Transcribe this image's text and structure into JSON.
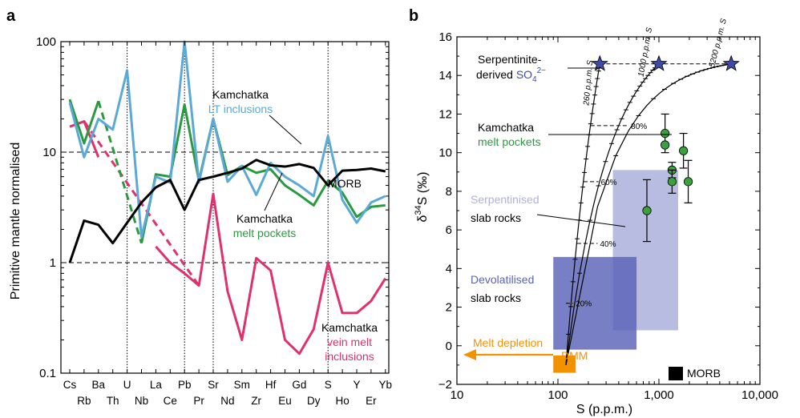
{
  "panels": {
    "a_label": "a",
    "b_label": "b"
  },
  "colors": {
    "morb": "#000000",
    "lt_inclusions": "#5aa9d6",
    "melt_pockets": "#2a9a3f",
    "vein_melt": "#e0306e",
    "serp_box": "#b4b8df",
    "devol_box": "#5a63b8",
    "star": "#3d4aa8",
    "dmm": "#f39200",
    "point_fill": "#3aa13f"
  },
  "chart_data": [
    {
      "type": "line",
      "ylabel": "Primitive mantle normalised",
      "yscale": "log",
      "ylim": [
        0.1,
        100
      ],
      "yticks": [
        "0.1",
        "1",
        "10",
        "100"
      ],
      "categories": [
        "Cs",
        "Rb",
        "Ba",
        "Th",
        "U",
        "Nb",
        "La",
        "Ce",
        "Pb",
        "Pr",
        "Sr",
        "Nd",
        "Sm",
        "Zr",
        "Hf",
        "Eu",
        "Gd",
        "Dy",
        "S",
        "Ho",
        "Y",
        "Er",
        "Yb"
      ],
      "category_labels_top": [
        "Cs",
        "Ba",
        "U",
        "La",
        "Pb",
        "Sr",
        "Sm",
        "Hf",
        "Gd",
        "S",
        "Y",
        "Yb"
      ],
      "category_labels_bottom": [
        "Rb",
        "Th",
        "Nb",
        "Ce",
        "Pr",
        "Nd",
        "Zr",
        "Eu",
        "Dy",
        "Ho",
        "Er"
      ],
      "dashed_hlines": [
        1,
        10
      ],
      "dotted_vlines": [
        "U",
        "Pb",
        "Sr",
        "S"
      ],
      "series": [
        {
          "name": "MORB",
          "values": [
            1.0,
            2.4,
            2.2,
            1.5,
            2.3,
            3.5,
            4.8,
            5.6,
            3.0,
            5.6,
            6.0,
            6.5,
            7.1,
            8.5,
            7.6,
            7.4,
            7.8,
            7.2,
            5.0,
            6.8,
            6.9,
            7.1,
            6.7
          ]
        },
        {
          "name": "Kamchatka LT inclusions",
          "values": [
            28,
            9,
            20,
            16,
            55,
            1.7,
            6,
            5.3,
            100,
            5.3,
            20,
            5.4,
            7.5,
            4.1,
            8,
            6,
            5,
            4,
            14,
            3.7,
            2.3,
            3.5,
            4
          ]
        },
        {
          "name": "Kamchatka melt pockets",
          "values": [
            30,
            12,
            29,
            null,
            null,
            1.5,
            6.3,
            6,
            27,
            5.5,
            20,
            6.2,
            7.5,
            6.5,
            7,
            5,
            4.1,
            3.3,
            5.5,
            4.3,
            2.6,
            3.2,
            3.3
          ],
          "dashed_segment": [
            2,
            5
          ]
        },
        {
          "name": "Kamchatka vein melt inclusions",
          "values": [
            17,
            19,
            9,
            null,
            null,
            null,
            1.4,
            1.0,
            0.8,
            0.62,
            4.2,
            0.55,
            0.2,
            1.1,
            0.85,
            0.2,
            0.15,
            0.25,
            1.0,
            0.35,
            0.35,
            0.45,
            0.72
          ],
          "dashed_segment": [
            1,
            9
          ]
        }
      ],
      "annotations": [
        {
          "line1": "Kamchatka",
          "line2": "LT inclusions"
        },
        {
          "line1": "MORB",
          "line2": ""
        },
        {
          "line1": "Kamchatka",
          "line2": "melt pockets"
        },
        {
          "line1": "Kamchatka",
          "line2": "vein melt",
          "line3": "inclusions"
        }
      ]
    },
    {
      "type": "scatter",
      "xlabel": "S (p.p.m.)",
      "ylabel_prefix": "δ",
      "ylabel_sup": "34",
      "ylabel_suffix": "S (‰)",
      "xscale": "log",
      "xlim": [
        10,
        10000
      ],
      "ylim": [
        -2,
        16
      ],
      "xticks": [
        "10",
        "100",
        "1,000",
        "10,000"
      ],
      "yticks": [
        "−2",
        "0",
        "2",
        "4",
        "6",
        "8",
        "10",
        "12",
        "14",
        "16"
      ],
      "points": [
        {
          "x": 1150,
          "y": 11.0,
          "err": 1.0
        },
        {
          "x": 1150,
          "y": 10.4,
          "err": 0
        },
        {
          "x": 1750,
          "y": 10.1,
          "err": 0.9
        },
        {
          "x": 1350,
          "y": 9.1,
          "err": 0.4
        },
        {
          "x": 1350,
          "y": 8.5,
          "err": 0.6
        },
        {
          "x": 1950,
          "y": 8.5,
          "err": 1.1
        },
        {
          "x": 760,
          "y": 7.0,
          "err": 1.6
        }
      ],
      "stars": [
        {
          "x": 260,
          "y": 14.6
        },
        {
          "x": 1000,
          "y": 14.6
        },
        {
          "x": 5200,
          "y": 14.6
        }
      ],
      "mixing_curves": [
        {
          "label": "260 p.p.m. S",
          "end_x": 260
        },
        {
          "label": "1000 p.p.m. S",
          "end_x": 1000
        },
        {
          "label": "5200 p.p.m. S",
          "end_x": 5200
        }
      ],
      "percent_levels": [
        {
          "label": "20%",
          "y": 2.2
        },
        {
          "label": "40%",
          "y": 5.3
        },
        {
          "label": "60%",
          "y": 8.5
        },
        {
          "label": "80%",
          "y": 11.4
        }
      ],
      "boxes": [
        {
          "name": "Serpentinised slab rocks",
          "x": [
            350,
            1550
          ],
          "y": [
            0.8,
            9.1
          ]
        },
        {
          "name": "Devolatilised slab rocks",
          "x": [
            90,
            600
          ],
          "y": [
            -0.2,
            4.6
          ]
        }
      ],
      "dmm": {
        "label": "DMM",
        "x": [
          90,
          150
        ],
        "y": [
          -1.4,
          -0.5
        ]
      },
      "morb": {
        "label": "MORB"
      },
      "melt_depletion": {
        "label": "Melt depletion"
      },
      "labels": {
        "serpentinite_line1": "Serpentinite-",
        "serpentinite_line2": "derived",
        "so4_base": "SO",
        "so4_sub": "4",
        "so4_sup": "2−",
        "melt_pockets_line1": "Kamchatka",
        "melt_pockets_line2": "melt pockets",
        "serp_line1": "Serpentinised",
        "serp_line2": "slab rocks",
        "devol_line1": "Devolatilised",
        "devol_line2": "slab rocks"
      }
    }
  ]
}
